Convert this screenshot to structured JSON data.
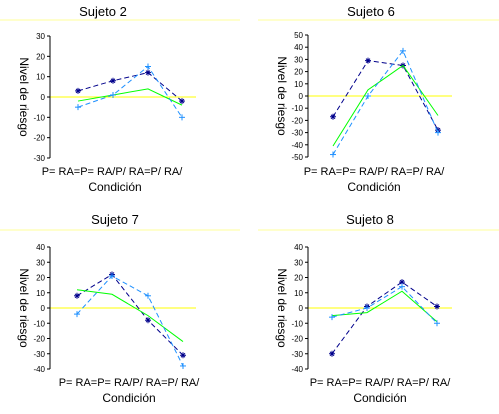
{
  "colors": {
    "background": "#ffffff",
    "axis": "#000000",
    "zero_line": "#ffff00",
    "separator": "#ffff99",
    "series_1": "#00008b",
    "series_2": "#00ff00",
    "series_3": "#1e90ff"
  },
  "chart_data": [
    {
      "type": "line",
      "title": "Sujeto 2",
      "xlabel": "Condición",
      "ylabel": "Nivel de riesgo",
      "categories": [
        "P= RA=",
        "P= RA/",
        "P/ RA=",
        "P/ RA/"
      ],
      "yticks": [
        30,
        20,
        10,
        0,
        -10,
        -20,
        -30
      ],
      "ylim": [
        -30,
        30
      ],
      "grid": false,
      "legend": "none",
      "series": [
        {
          "values": [
            3,
            8,
            12,
            -2
          ],
          "color": "#00008b",
          "style": "dashed",
          "marker": "star"
        },
        {
          "values": [
            -2,
            1,
            4,
            -4
          ],
          "color": "#00ff00",
          "style": "solid",
          "marker": "none"
        },
        {
          "values": [
            -5,
            1,
            15,
            -10
          ],
          "color": "#1e90ff",
          "style": "dashed",
          "marker": "plus"
        }
      ]
    },
    {
      "type": "line",
      "title": "Sujeto 6",
      "xlabel": "Condición",
      "ylabel": "Nivel de riesgo",
      "categories": [
        "P= RA=",
        "P= RA/",
        "P/ RA=",
        "P/ RA/"
      ],
      "yticks": [
        50,
        40,
        30,
        20,
        10,
        0,
        -10,
        -20,
        -30,
        -40,
        -50
      ],
      "ylim": [
        -50,
        50
      ],
      "grid": false,
      "legend": "none",
      "series": [
        {
          "values": [
            -17,
            29,
            25,
            -28
          ],
          "color": "#00008b",
          "style": "dashed",
          "marker": "star"
        },
        {
          "values": [
            -41,
            5,
            25,
            -16
          ],
          "color": "#00ff00",
          "style": "solid",
          "marker": "none"
        },
        {
          "values": [
            -48,
            0,
            37,
            -30
          ],
          "color": "#1e90ff",
          "style": "dashed",
          "marker": "plus"
        }
      ]
    },
    {
      "type": "line",
      "title": "Sujeto 7",
      "xlabel": "Condición",
      "ylabel": "Nivel de riesgo",
      "categories": [
        "P= RA=",
        "P= RA/",
        "P/ RA=",
        "P/ RA/"
      ],
      "yticks": [
        40,
        30,
        20,
        10,
        0,
        -10,
        -20,
        -30,
        -40
      ],
      "ylim": [
        -40,
        40
      ],
      "grid": false,
      "legend": "none",
      "series": [
        {
          "values": [
            8,
            22,
            -8,
            -31
          ],
          "color": "#00008b",
          "style": "dashed",
          "marker": "star"
        },
        {
          "values": [
            12,
            9,
            -5,
            -22
          ],
          "color": "#00ff00",
          "style": "solid",
          "marker": "none"
        },
        {
          "values": [
            -4,
            21,
            8,
            -38
          ],
          "color": "#1e90ff",
          "style": "dashed",
          "marker": "plus"
        }
      ]
    },
    {
      "type": "line",
      "title": "Sujeto 8",
      "xlabel": "Condición",
      "ylabel": "Nivel de riesgo",
      "categories": [
        "P= RA=",
        "P= RA/",
        "P/ RA=",
        "P/ RA/"
      ],
      "yticks": [
        40,
        30,
        20,
        10,
        0,
        -10,
        -20,
        -30,
        -40
      ],
      "ylim": [
        -40,
        40
      ],
      "grid": false,
      "legend": "none",
      "series": [
        {
          "values": [
            -30,
            1,
            17,
            1
          ],
          "color": "#00008b",
          "style": "dashed",
          "marker": "star"
        },
        {
          "values": [
            -5,
            -3,
            11,
            -9
          ],
          "color": "#00ff00",
          "style": "solid",
          "marker": "none"
        },
        {
          "values": [
            -6,
            0,
            14,
            -10
          ],
          "color": "#1e90ff",
          "style": "dashed",
          "marker": "plus"
        }
      ]
    }
  ]
}
